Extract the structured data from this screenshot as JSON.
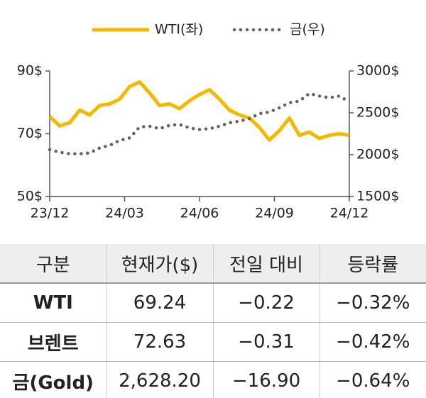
{
  "chart_data": {
    "type": "line",
    "legend_position": "top",
    "x": [
      0,
      0.4,
      0.8,
      1.2,
      1.6,
      2.0,
      2.4,
      2.8,
      3.2,
      3.6,
      4.0,
      4.4,
      4.8,
      5.2,
      5.6,
      6.0,
      6.4,
      6.8,
      7.2,
      7.6,
      8.0,
      8.4,
      8.8,
      9.2,
      9.6,
      10.0,
      10.4,
      10.8,
      11.2,
      11.6,
      12.0
    ],
    "xlim": [
      0,
      12
    ],
    "xticks": [
      {
        "value": 0,
        "label": "23/12"
      },
      {
        "value": 3,
        "label": "24/03"
      },
      {
        "value": 6,
        "label": "24/06"
      },
      {
        "value": 9,
        "label": "24/09"
      },
      {
        "value": 12,
        "label": "24/12"
      }
    ],
    "ylim": [
      50,
      90
    ],
    "yticks": [
      {
        "value": 50,
        "label": "50$"
      },
      {
        "value": 70,
        "label": "70$"
      },
      {
        "value": 90,
        "label": "90$"
      }
    ],
    "y2lim": [
      1500,
      3000
    ],
    "y2ticks": [
      {
        "value": 1500,
        "label": "1500$"
      },
      {
        "value": 2000,
        "label": "2000$"
      },
      {
        "value": 2500,
        "label": "2500$"
      },
      {
        "value": 3000,
        "label": "3000$"
      }
    ],
    "series": [
      {
        "name": "WTI(좌)",
        "color": "#f5b800",
        "style": "solid",
        "axis": "y",
        "values": [
          75.5,
          72.5,
          73.5,
          77.5,
          76,
          79,
          79.5,
          81,
          85,
          86.5,
          83,
          79,
          79.5,
          78,
          80.5,
          82.5,
          84,
          81,
          77.5,
          76,
          75,
          72,
          68,
          71,
          75,
          69.5,
          70.5,
          68.5,
          69.5,
          70,
          69.5
        ]
      },
      {
        "name": "금(우)",
        "color": "#6b5d4f",
        "style": "dotted",
        "axis": "y2",
        "values": [
          2060,
          2030,
          2010,
          2010,
          2020,
          2080,
          2110,
          2170,
          2200,
          2330,
          2340,
          2310,
          2350,
          2360,
          2320,
          2300,
          2310,
          2340,
          2380,
          2400,
          2430,
          2490,
          2510,
          2560,
          2620,
          2640,
          2730,
          2700,
          2680,
          2700,
          2630
        ]
      }
    ]
  },
  "table": {
    "header": [
      "구분",
      "현재가($)",
      "전일 대비",
      "등락률"
    ],
    "rows": [
      [
        "WTI",
        "69.24",
        "−0.22",
        "−0.32%"
      ],
      [
        "브렌트",
        "72.63",
        "−0.31",
        "−0.42%"
      ],
      [
        "금(Gold)",
        "2,628.20",
        "−16.90",
        "−0.64%"
      ]
    ]
  }
}
